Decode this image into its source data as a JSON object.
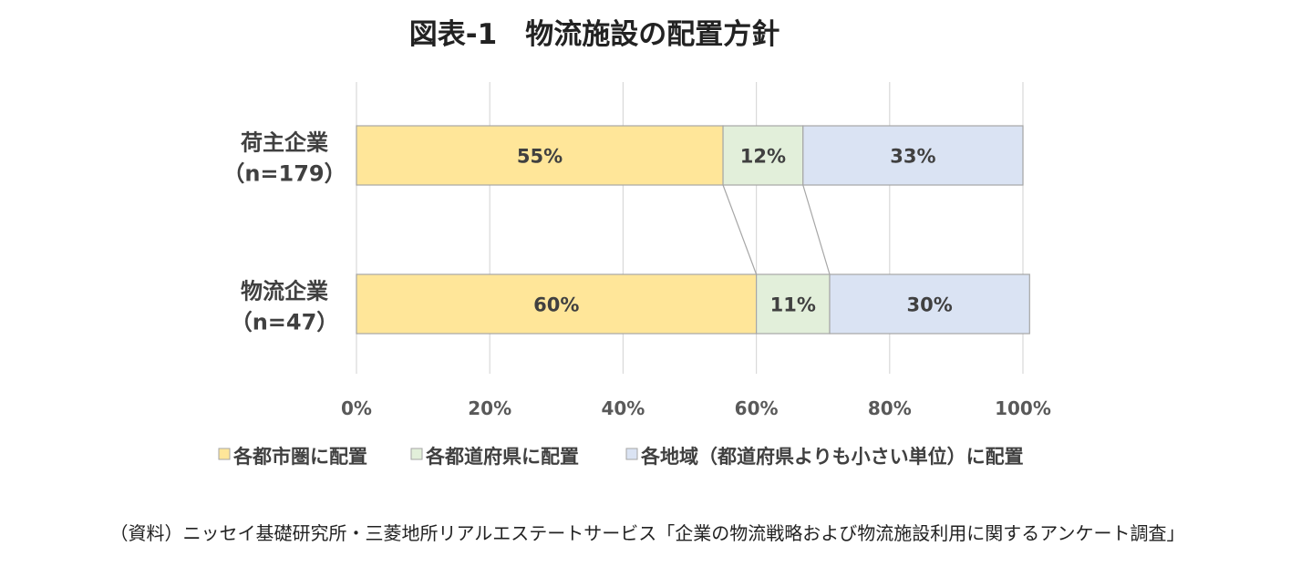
{
  "chart_data": {
    "type": "bar",
    "orientation": "horizontal",
    "stacked": true,
    "title": "図表-1　物流施設の配置方針",
    "categories": [
      {
        "name": "荷主企業",
        "sub": "（n=179）"
      },
      {
        "name": "物流企業",
        "sub": "（n=47）"
      }
    ],
    "series": [
      {
        "name": "各都市圏に配置",
        "values": [
          55,
          60
        ],
        "labels": [
          "55%",
          "60%"
        ],
        "color": "#ffe699"
      },
      {
        "name": "各都道府県に配置",
        "values": [
          12,
          11
        ],
        "labels": [
          "12%",
          "11%"
        ],
        "color": "#e2efda"
      },
      {
        "name": "各地域（都道府県よりも小さい単位）に配置",
        "values": [
          33,
          30
        ],
        "labels": [
          "33%",
          "30%"
        ],
        "color": "#dae3f3"
      }
    ],
    "xlim": [
      0,
      100
    ],
    "xticks": [
      0,
      20,
      40,
      60,
      80,
      100
    ],
    "xtick_labels": [
      "0%",
      "20%",
      "40%",
      "60%",
      "80%",
      "100%"
    ],
    "grid": true,
    "series_lines": true,
    "legend_position": "bottom",
    "source": "（資料）ニッセイ基礎研究所・三菱地所リアルエステートサービス「企業の物流戦略および物流施設利用に関するアンケート調査」"
  }
}
